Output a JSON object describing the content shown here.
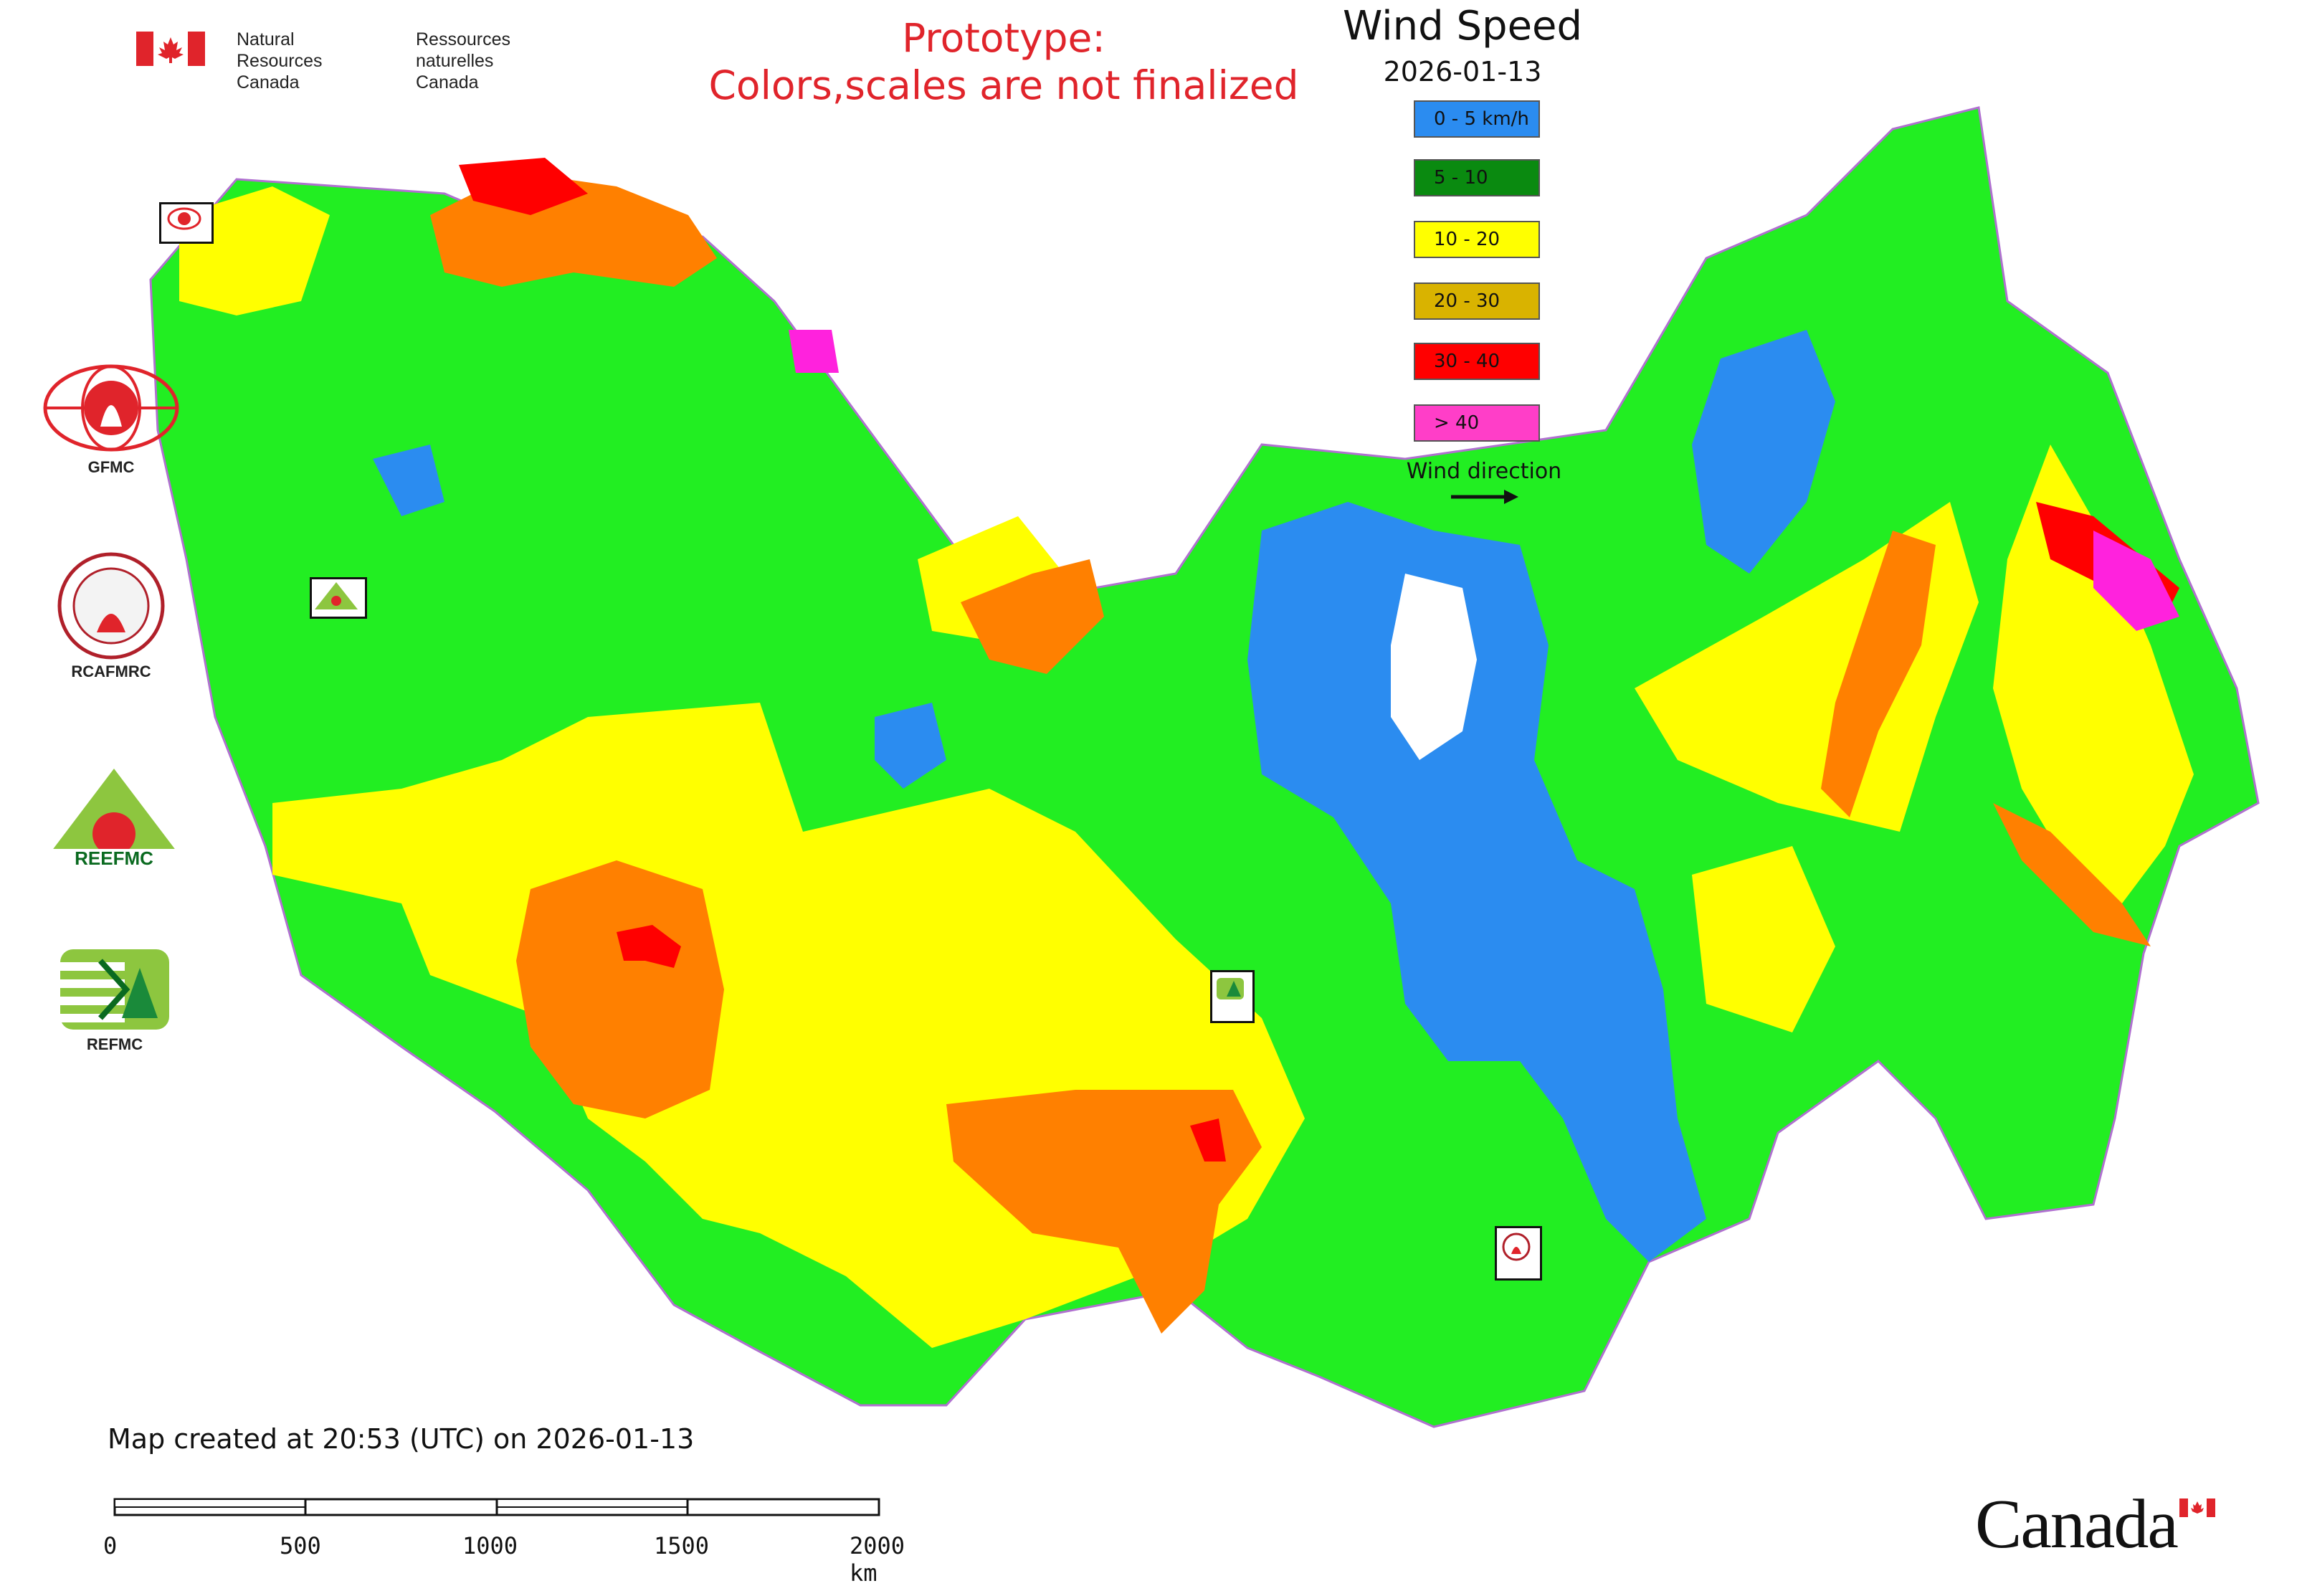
{
  "header": {
    "nrcan_en_line1": "Natural Resources",
    "nrcan_en_line2": "Canada",
    "nrcan_fr_line1": "Ressources naturelles",
    "nrcan_fr_line2": "Canada",
    "prototype_line1": "Prototype:",
    "prototype_line2": "Colors,scales are not finalized"
  },
  "legend": {
    "title": "Wind Speed",
    "date": "2026-01-13",
    "items": [
      {
        "label": "0 - 5 km/h",
        "color": "#2b8cf0"
      },
      {
        "label": "5 - 10",
        "color": "#0a8a10"
      },
      {
        "label": "10 - 20",
        "color": "#ffff00"
      },
      {
        "label": "20 - 30",
        "color": "#d9b300"
      },
      {
        "label": "30 - 40",
        "color": "#ff0000"
      },
      {
        "label": "> 40",
        "color": "#ff3ec8"
      }
    ],
    "wind_direction_label": "Wind direction"
  },
  "map_colors": {
    "calm": "#2b8cf0",
    "light": "#22ee22",
    "moderate": "#ffff00",
    "fresh": "#ff8000",
    "strong": "#ff0000",
    "gale": "#ff22dd",
    "border": "#b070d0"
  },
  "organizations": [
    {
      "label": "GFMC"
    },
    {
      "label": "RCAFMRC"
    },
    {
      "label": "REFMC"
    }
  ],
  "footer": {
    "created": "Map created at 20:53 (UTC) on 2026-01-13",
    "scale_labels": [
      "0",
      "500",
      "1000",
      "1500",
      "2000 km"
    ],
    "wordmark": "Canada"
  }
}
